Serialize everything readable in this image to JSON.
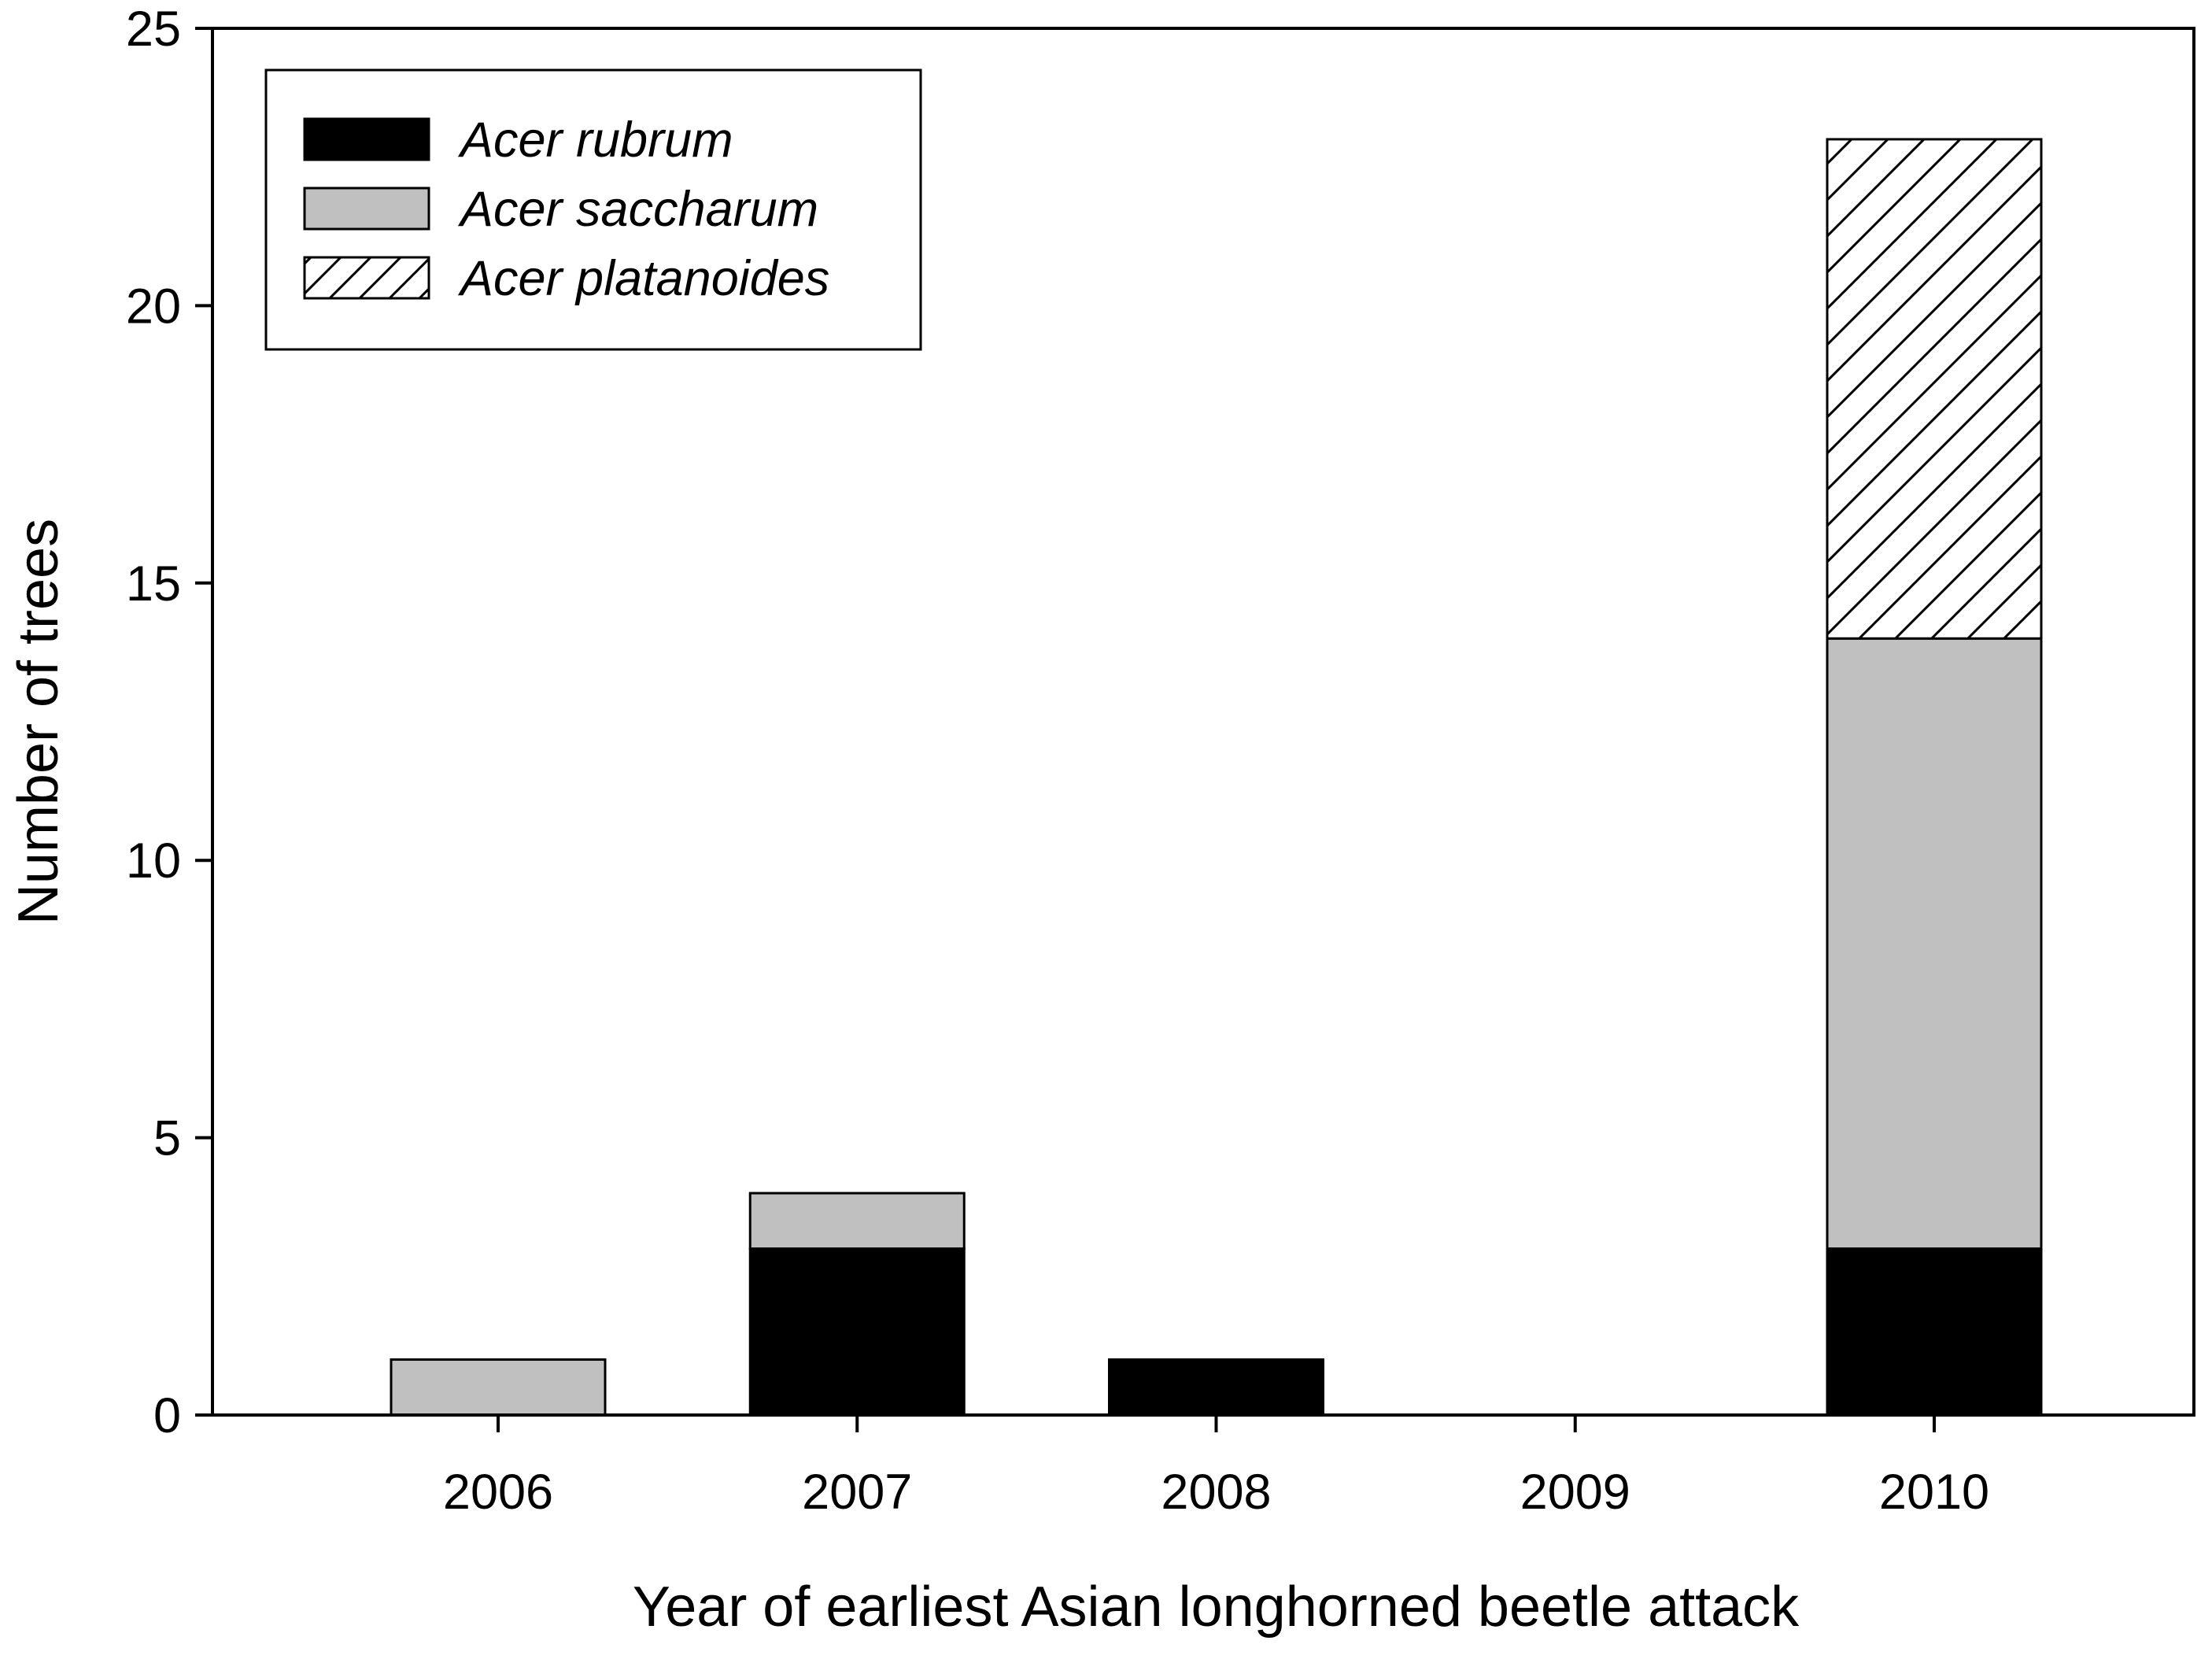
{
  "chart_data": {
    "type": "bar",
    "stacked": true,
    "categories": [
      "2006",
      "2007",
      "2008",
      "2009",
      "2010"
    ],
    "series": [
      {
        "name": "Acer rubrum",
        "values": [
          0,
          3,
          1,
          0,
          3
        ],
        "fill": "#000000",
        "pattern": "solid"
      },
      {
        "name": "Acer saccharum",
        "values": [
          1,
          1,
          0,
          0,
          11
        ],
        "fill": "#c0c0c0",
        "pattern": "solid"
      },
      {
        "name": "Acer platanoides",
        "values": [
          0,
          0,
          0,
          0,
          9
        ],
        "fill": "#ffffff",
        "pattern": "diagonal-hatch"
      }
    ],
    "xlabel": "Year of earliest Asian longhorned beetle attack",
    "ylabel": "Number of trees",
    "ylim": [
      0,
      25
    ],
    "yticks": [
      "0",
      "5",
      "10",
      "15",
      "20",
      "25"
    ],
    "grid": false,
    "legend_position": "top-left"
  }
}
